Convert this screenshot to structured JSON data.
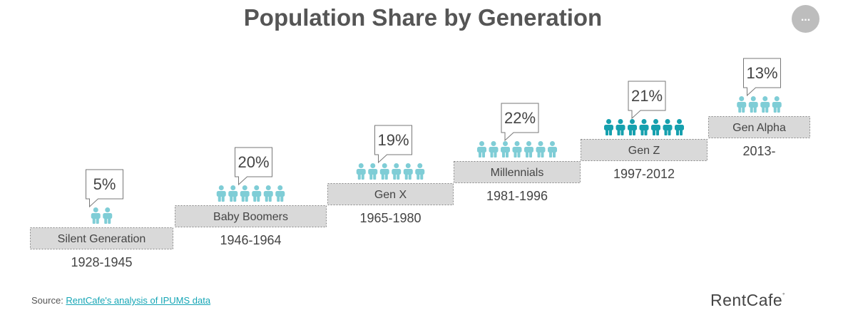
{
  "page": {
    "title": "Population Share by Generation",
    "menu_label": "...",
    "source_prefix": "Source: ",
    "source_link": "RentCafe's analysis of IPUMS data",
    "brand": "RentCafe",
    "brand_mark": "°"
  },
  "colors": {
    "person": "#7fcdd6",
    "person_highlight": "#16a0ae",
    "step_fill": "#d9d9d9",
    "step_border": "#888888",
    "text": "#444444"
  },
  "chart_data": {
    "type": "pictograph",
    "title": "Population Share by Generation",
    "unit": "%",
    "highlight": "Gen Z",
    "categories": [
      "Silent Generation",
      "Baby Boomers",
      "Gen X",
      "Millennials",
      "Gen Z",
      "Gen Alpha"
    ],
    "values": [
      5,
      20,
      19,
      22,
      21,
      13
    ],
    "value_labels": [
      "5%",
      "20%",
      "19%",
      "22%",
      "21%",
      "13%"
    ],
    "years": [
      "1928-1945",
      "1946-1964",
      "1965-1980",
      "1981-1996",
      "1997-2012",
      "2013-"
    ],
    "icons": [
      2,
      6,
      6,
      7,
      7,
      4
    ]
  }
}
